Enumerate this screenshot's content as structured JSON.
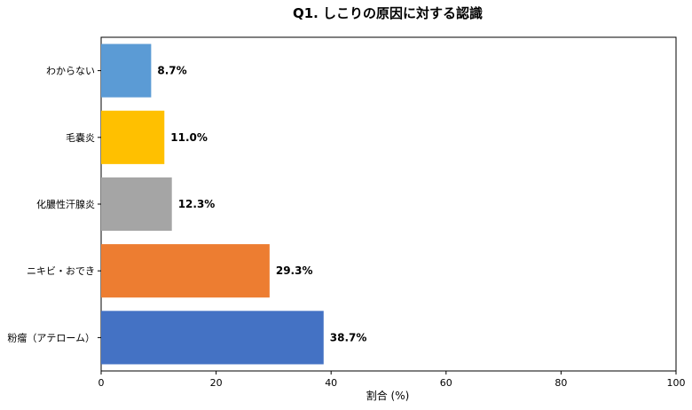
{
  "chart_data": {
    "type": "bar",
    "orientation": "horizontal",
    "title": "Q1. しこりの原因に対する認識",
    "xlabel": "割合 (%)",
    "ylabel": "",
    "xlim": [
      0,
      100
    ],
    "x_ticks": [
      0,
      20,
      40,
      60,
      80,
      100
    ],
    "grid": false,
    "categories": [
      "粉瘤（アテローム）",
      "ニキビ・おでき",
      "化膿性汗腺炎",
      "毛嚢炎",
      "わからない"
    ],
    "values": [
      38.7,
      29.3,
      12.3,
      11.0,
      8.7
    ],
    "value_labels": [
      "38.7%",
      "29.3%",
      "12.3%",
      "11.0%",
      "8.7%"
    ],
    "colors": [
      "#4472c4",
      "#ed7d31",
      "#a5a5a5",
      "#ffc000",
      "#5b9bd5"
    ]
  }
}
